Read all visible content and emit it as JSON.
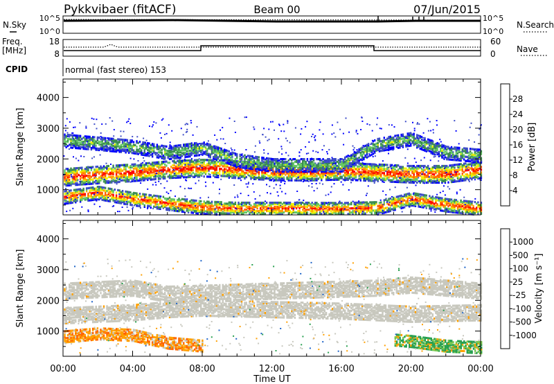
{
  "header": {
    "station": "Pykkvibaer (fitACF)",
    "beam": "Beam 00",
    "date": "07/Jun/2015"
  },
  "top_panel": {
    "left_label": "N.Sky",
    "right_label": "N.Search",
    "left_ticks": [
      "10^5",
      "10^0"
    ],
    "right_ticks": [
      "10^5",
      "10^0"
    ]
  },
  "freq_panel": {
    "left_label_1": "Freq.",
    "left_label_2": "[MHz]",
    "right_label": "Nave",
    "left_ticks": [
      "18",
      "8"
    ],
    "right_ticks": [
      "60",
      "0"
    ]
  },
  "cpid": {
    "label": "CPID",
    "value": "normal (fast stereo) 153"
  },
  "x_axis": {
    "label": "Time UT",
    "ticks": [
      "00:00",
      "04:00",
      "08:00",
      "12:00",
      "16:00",
      "20:00",
      "00:00"
    ]
  },
  "y_axis_label": "Slant Range [km]",
  "y_ticks": [
    "1000",
    "2000",
    "3000",
    "4000"
  ],
  "colors": {
    "power_scale": [
      "#0000ff",
      "#3c4bc8",
      "#3c8c50",
      "#64c864",
      "#f0f000",
      "#ffa000",
      "#ff6000",
      "#ff0000"
    ],
    "velocity_scale": [
      "#0000c8",
      "#1e64c8",
      "#28a050",
      "#78c850",
      "#c8c8c8",
      "#c8c8c8",
      "#ffa000",
      "#ff6400",
      "#ff0000"
    ],
    "scatter_gray": "#c8c8be"
  },
  "chart_data": [
    {
      "type": "heatmap",
      "title": "",
      "xlabel": "Time UT",
      "ylabel": "Slant Range [km]",
      "xlim": [
        0,
        24
      ],
      "ylim": [
        180,
        4600
      ],
      "colorbar": {
        "label": "Power [dB]",
        "ticks": [
          "4",
          "8",
          "12",
          "16",
          "20",
          "24",
          "28"
        ]
      },
      "bands": [
        {
          "name": "main",
          "points": [
            [
              0,
              1400
            ],
            [
              2,
              1480
            ],
            [
              4,
              1550
            ],
            [
              6,
              1650
            ],
            [
              8,
              1700
            ],
            [
              10,
              1650
            ],
            [
              12,
              1580
            ],
            [
              14,
              1570
            ],
            [
              16,
              1600
            ],
            [
              18,
              1550
            ],
            [
              20,
              1500
            ],
            [
              22,
              1500
            ],
            [
              24,
              1650
            ]
          ]
        },
        {
          "name": "upper",
          "points": [
            [
              0,
              2600
            ],
            [
              2,
              2500
            ],
            [
              4,
              2400
            ],
            [
              6,
              2200
            ],
            [
              8,
              2350
            ],
            [
              10,
              1950
            ],
            [
              12,
              1800
            ],
            [
              14,
              1800
            ],
            [
              16,
              1800
            ],
            [
              18,
              2450
            ],
            [
              20,
              2650
            ],
            [
              22,
              2200
            ],
            [
              24,
              2100
            ]
          ]
        },
        {
          "name": "low",
          "points": [
            [
              0,
              750
            ],
            [
              2,
              900
            ],
            [
              4,
              700
            ],
            [
              6,
              550
            ],
            [
              8,
              420
            ],
            [
              10,
              380
            ],
            [
              12,
              380
            ],
            [
              14,
              380
            ],
            [
              16,
              370
            ],
            [
              18,
              400
            ],
            [
              20,
              700
            ],
            [
              22,
              500
            ],
            [
              24,
              380
            ]
          ]
        }
      ]
    },
    {
      "type": "heatmap",
      "title": "",
      "xlabel": "Time UT",
      "ylabel": "Slant Range [km]",
      "xlim": [
        0,
        24
      ],
      "ylim": [
        180,
        4600
      ],
      "colorbar": {
        "label": "Velocity [m s⁻¹]",
        "ticks": [
          "1000",
          "500",
          "100",
          "25",
          "-25",
          "-100",
          "-500",
          "-1000"
        ]
      },
      "bands": [
        {
          "name": "gray_main",
          "points": [
            [
              0,
              1500
            ],
            [
              4,
              1600
            ],
            [
              6,
              1700
            ],
            [
              8,
              1750
            ],
            [
              12,
              1700
            ],
            [
              16,
              1650
            ],
            [
              18,
              1600
            ],
            [
              20,
              1550
            ],
            [
              24,
              1600
            ]
          ]
        },
        {
          "name": "gray_upper",
          "points": [
            [
              0,
              2300
            ],
            [
              4,
              2400
            ],
            [
              6,
              2200
            ],
            [
              18,
              2400
            ],
            [
              20,
              2500
            ],
            [
              24,
              2300
            ]
          ]
        },
        {
          "name": "orange_low",
          "points": [
            [
              0,
              800
            ],
            [
              2,
              900
            ],
            [
              4,
              850
            ],
            [
              6,
              600
            ],
            [
              8,
              500
            ]
          ]
        },
        {
          "name": "green_low",
          "points": [
            [
              19,
              700
            ],
            [
              20,
              650
            ],
            [
              22,
              500
            ],
            [
              24,
              450
            ]
          ]
        }
      ]
    }
  ]
}
